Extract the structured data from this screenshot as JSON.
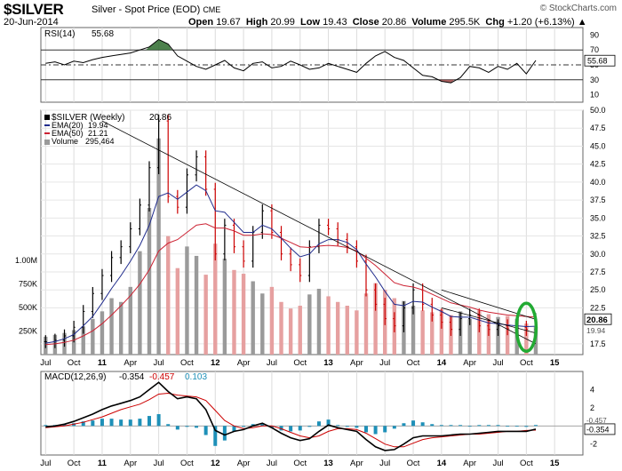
{
  "header": {
    "symbol": "$SILVER",
    "description": "Silver - Spot Price (EOD)",
    "exchange": "CME",
    "date": "20-Jun-2014",
    "open_label": "Open",
    "open": "19.67",
    "high_label": "High",
    "high": "20.99",
    "low_label": "Low",
    "low": "19.43",
    "close_label": "Close",
    "close": "20.86",
    "volume_label": "Volume",
    "volume": "295.5K",
    "chg_label": "Chg",
    "chg": "+1.20 (+6.13%)",
    "chg_arrow": "▲",
    "brand": "© StockCharts.com"
  },
  "colors": {
    "price_bar_up": "#000000",
    "price_bar_down": "#cc0000",
    "ema20": "#1f2b8c",
    "ema50": "#cc2233",
    "trendline": "#000000",
    "highlight_ellipse": "#22aa33",
    "rsi_line": "#000000",
    "rsi_overbought_fill": "#2e6b2e",
    "rsi_oversold_fill": "#a04848",
    "macd_line": "#000000",
    "signal_line": "#cc0000",
    "histogram": "#1e90b8",
    "volume_up": "#9a9a9a",
    "volume_down": "#e6a0a0"
  },
  "chart_data": [
    {
      "type": "line",
      "id": "rsi",
      "title": "RSI(14)",
      "title_value": "55.68",
      "ylim": [
        0,
        100
      ],
      "y_ticks": [
        "90",
        "70",
        "50",
        "30",
        "10"
      ],
      "tick_values": [
        90,
        70,
        50,
        30,
        10
      ],
      "reference_lines": [
        70,
        50,
        30
      ],
      "last_value": 55.68,
      "last_label": "55.68",
      "x": [
        0,
        2,
        4,
        6,
        8,
        10,
        12,
        14,
        16,
        18,
        20,
        22,
        24,
        26,
        28,
        30,
        32,
        34,
        36,
        38,
        40,
        42,
        44,
        46,
        48,
        50,
        52,
        54,
        56,
        58,
        60,
        62,
        64,
        66,
        68,
        70,
        72,
        74,
        76,
        78,
        80,
        82,
        84,
        86,
        88,
        90,
        92,
        94,
        96,
        98,
        100,
        102,
        104
      ],
      "values": [
        52,
        54,
        50,
        55,
        53,
        57,
        60,
        62,
        64,
        66,
        70,
        74,
        84,
        78,
        62,
        55,
        48,
        44,
        50,
        56,
        46,
        42,
        52,
        54,
        46,
        48,
        55,
        50,
        44,
        46,
        52,
        48,
        44,
        40,
        52,
        62,
        68,
        60,
        56,
        46,
        36,
        34,
        28,
        26,
        33,
        48,
        46,
        40,
        48,
        44,
        52,
        38,
        56
      ]
    },
    {
      "type": "line",
      "id": "price",
      "title": "$SILVER (Weekly)",
      "title_value": "20.86",
      "legend": [
        {
          "name": "EMA(20)",
          "value": "19.94"
        },
        {
          "name": "EMA(50)",
          "value": "21.21"
        },
        {
          "name": "Volume",
          "value": "295,464"
        }
      ],
      "ylim": [
        16,
        50
      ],
      "y_ticks": [
        "50.0",
        "47.5",
        "45.0",
        "42.5",
        "40.0",
        "37.5",
        "35.0",
        "32.5",
        "30.0",
        "27.5",
        "25.0",
        "22.5",
        "17.5"
      ],
      "tick_values": [
        50,
        47.5,
        45,
        42.5,
        40,
        37.5,
        35,
        32.5,
        30,
        27.5,
        25,
        22.5,
        17.5
      ],
      "last_price": 20.86,
      "last_price_label": "20.86",
      "ema20_last": 19.94,
      "ema20_last_label": "19.94",
      "ema50_last": 21.21,
      "volume_ticks": [
        "1.00M",
        "750K",
        "500K",
        "250K"
      ],
      "volume_tick_values": [
        1000,
        750,
        500,
        250
      ],
      "volume_max": 2600,
      "x": [
        0,
        2,
        4,
        6,
        8,
        10,
        12,
        14,
        16,
        18,
        20,
        22,
        24,
        26,
        28,
        30,
        32,
        34,
        36,
        38,
        40,
        42,
        44,
        46,
        48,
        50,
        52,
        54,
        56,
        58,
        60,
        62,
        64,
        66,
        68,
        70,
        72,
        74,
        76,
        78,
        80,
        82,
        84,
        86,
        88,
        90,
        92,
        94,
        96,
        98,
        100,
        102,
        104
      ],
      "close": [
        17.8,
        18.0,
        18.6,
        19.8,
        22,
        24.5,
        27,
        29.5,
        31,
        33.5,
        36.8,
        42,
        48.5,
        38,
        36.5,
        41,
        43.5,
        39,
        30,
        34,
        31,
        29,
        33,
        36,
        33,
        30,
        28.5,
        27,
        31,
        34,
        33.5,
        32,
        31,
        29,
        25,
        23,
        21,
        20,
        22.5,
        25,
        23,
        21.5,
        20.5,
        19.5,
        21,
        21.5,
        20,
        19.5,
        20,
        19.6,
        19.8,
        19.5,
        20.86
      ],
      "ema20": [
        17.6,
        17.8,
        18.2,
        18.8,
        20,
        21.3,
        23.2,
        25.2,
        27,
        29,
        31.2,
        34,
        38,
        38.5,
        37.6,
        38.6,
        39.6,
        38.8,
        36,
        35.8,
        34.4,
        33,
        33,
        34,
        33.5,
        32.2,
        30.8,
        29.6,
        30,
        31.4,
        32,
        32,
        31.6,
        30.6,
        28.6,
        26.8,
        24.8,
        23,
        22.8,
        23.4,
        23.3,
        22.6,
        22,
        21.3,
        21.2,
        21.2,
        20.8,
        20.4,
        20.3,
        20.1,
        20.0,
        19.9,
        19.94
      ],
      "ema50": [
        17.4,
        17.5,
        17.7,
        18,
        18.6,
        19.3,
        20.3,
        21.5,
        22.8,
        24.2,
        25.8,
        27.8,
        30.4,
        31.5,
        32,
        33,
        34,
        34.2,
        33.6,
        33.6,
        33.2,
        32.6,
        32.6,
        32.8,
        32.7,
        32.2,
        31.6,
        31,
        30.9,
        31.1,
        31.2,
        31.1,
        30.9,
        30.4,
        29.4,
        28.4,
        27.2,
        26,
        25.6,
        25.4,
        25,
        24.4,
        23.8,
        23.2,
        22.9,
        22.6,
        22.2,
        21.9,
        21.7,
        21.5,
        21.4,
        21.3,
        21.21
      ],
      "volume": [
        190,
        210,
        230,
        260,
        300,
        380,
        460,
        600,
        560,
        720,
        1100,
        1560,
        2300,
        1260,
        920,
        1150,
        1050,
        850,
        1180,
        1020,
        900,
        860,
        780,
        650,
        720,
        560,
        490,
        520,
        640,
        700,
        620,
        560,
        520,
        470,
        650,
        760,
        690,
        600,
        570,
        520,
        470,
        450,
        480,
        420,
        460,
        380,
        470,
        430,
        400,
        410,
        380,
        330,
        295
      ],
      "trendlines": [
        {
          "from": [
            12,
            48.5
          ],
          "to": [
            104,
            17.5
          ]
        },
        {
          "from": [
            84,
            22.5
          ],
          "to": [
            104,
            19.0
          ]
        },
        {
          "from": [
            84,
            25.0
          ],
          "to": [
            104,
            20.9
          ]
        }
      ],
      "highlight": {
        "x": 102,
        "y": 19.8
      }
    },
    {
      "type": "line",
      "id": "macd",
      "title": "MACD(12,26,9)",
      "macd_value": "-0.354",
      "signal_value": "-0.457",
      "hist_value": "0.103",
      "ylim": [
        -3.2,
        6
      ],
      "y_ticks": [
        "4",
        "2",
        "-2"
      ],
      "tick_values": [
        4,
        2,
        -2
      ],
      "x": [
        0,
        2,
        4,
        6,
        8,
        10,
        12,
        14,
        16,
        18,
        20,
        22,
        24,
        26,
        28,
        30,
        32,
        34,
        36,
        38,
        40,
        42,
        44,
        46,
        48,
        50,
        52,
        54,
        56,
        58,
        60,
        62,
        64,
        66,
        68,
        70,
        72,
        74,
        76,
        78,
        80,
        82,
        84,
        86,
        88,
        90,
        92,
        94,
        96,
        98,
        100,
        102,
        104
      ],
      "macd": [
        -0.1,
        0,
        0.2,
        0.5,
        0.9,
        1.3,
        1.8,
        2.2,
        2.5,
        2.8,
        3.2,
        4.0,
        4.8,
        3.8,
        3.0,
        3.2,
        3.0,
        1.8,
        -0.5,
        -1.0,
        -0.6,
        -0.4,
        0.0,
        0.3,
        -0.2,
        -0.8,
        -1.3,
        -1.6,
        -1.4,
        -0.6,
        0.1,
        -0.2,
        -0.4,
        -0.6,
        -1.5,
        -2.3,
        -2.7,
        -2.6,
        -2.0,
        -1.3,
        -1.1,
        -1.1,
        -1.1,
        -1.0,
        -0.9,
        -0.9,
        -0.8,
        -0.7,
        -0.6,
        -0.6,
        -0.6,
        -0.6,
        -0.354
      ],
      "signal": [
        -0.2,
        -0.1,
        0.0,
        0.2,
        0.4,
        0.7,
        1.0,
        1.4,
        1.8,
        2.1,
        2.4,
        2.9,
        3.5,
        3.6,
        3.4,
        3.3,
        3.2,
        2.8,
        1.7,
        0.6,
        0.0,
        -0.3,
        -0.2,
        0.0,
        0.0,
        -0.3,
        -0.7,
        -1.1,
        -1.3,
        -1.1,
        -0.6,
        -0.3,
        -0.3,
        -0.4,
        -0.8,
        -1.4,
        -2.0,
        -2.3,
        -2.3,
        -1.9,
        -1.5,
        -1.3,
        -1.2,
        -1.1,
        -1.0,
        -0.9,
        -0.9,
        -0.8,
        -0.7,
        -0.6,
        -0.6,
        -0.5,
        -0.457
      ]
    }
  ],
  "x_axis": {
    "labels": [
      {
        "t": 0,
        "text": "Jul",
        "bold": false
      },
      {
        "t": 6,
        "text": "Oct",
        "bold": false
      },
      {
        "t": 12,
        "text": "11",
        "bold": true
      },
      {
        "t": 18,
        "text": "Apr",
        "bold": false
      },
      {
        "t": 24,
        "text": "Jul",
        "bold": false
      },
      {
        "t": 30,
        "text": "Oct",
        "bold": false
      },
      {
        "t": 36,
        "text": "12",
        "bold": true
      },
      {
        "t": 42,
        "text": "Apr",
        "bold": false
      },
      {
        "t": 48,
        "text": "Jul",
        "bold": false
      },
      {
        "t": 54,
        "text": "Oct",
        "bold": false
      },
      {
        "t": 60,
        "text": "13",
        "bold": true
      },
      {
        "t": 66,
        "text": "Apr",
        "bold": false
      },
      {
        "t": 72,
        "text": "Jul",
        "bold": false
      },
      {
        "t": 78,
        "text": "Oct",
        "bold": false
      },
      {
        "t": 84,
        "text": "14",
        "bold": true
      },
      {
        "t": 90,
        "text": "Apr",
        "bold": false
      },
      {
        "t": 96,
        "text": "Jul",
        "bold": false
      },
      {
        "t": 102,
        "text": "Oct",
        "bold": false
      },
      {
        "t": 108,
        "text": "15",
        "bold": true
      }
    ],
    "t_min": -1,
    "t_max": 114
  }
}
